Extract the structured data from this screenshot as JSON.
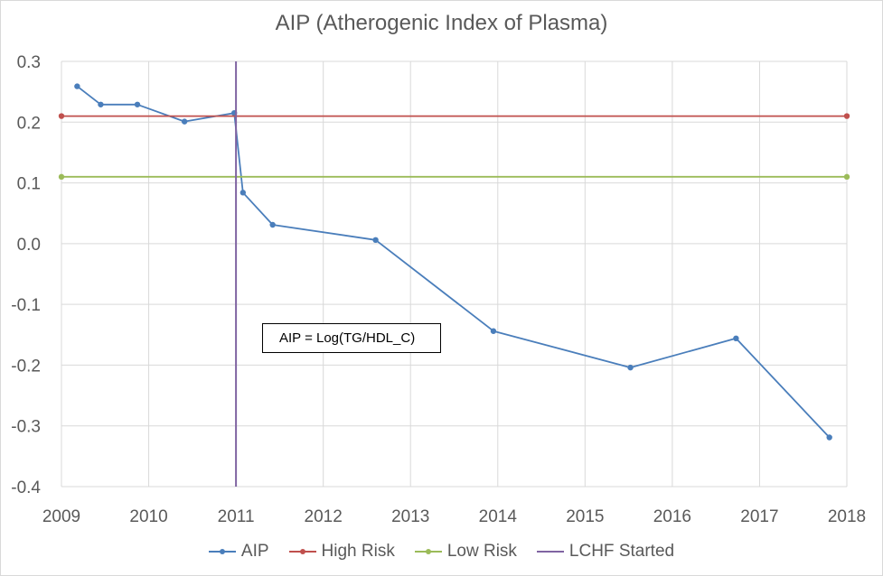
{
  "chart_data": {
    "type": "line",
    "title": "AIP (Atherogenic Index of Plasma)",
    "xlabel": "",
    "ylabel": "",
    "xlim": [
      2009,
      2018
    ],
    "ylim": [
      -0.4,
      0.3
    ],
    "x_ticks": [
      "2009",
      "2010",
      "2011",
      "2012",
      "2013",
      "2014",
      "2015",
      "2016",
      "2017",
      "2018"
    ],
    "y_ticks": [
      "0.3",
      "0.2",
      "0.1",
      "0.0",
      "-0.1",
      "-0.2",
      "-0.3",
      "-0.4"
    ],
    "grid": true,
    "series": [
      {
        "name": "AIP",
        "color": "#4a7ebb",
        "x": [
          2009.18,
          2009.45,
          2009.87,
          2010.41,
          2010.98,
          2011.08,
          2011.42,
          2012.6,
          2013.95,
          2015.52,
          2016.73,
          2017.8
        ],
        "y": [
          0.259,
          0.229,
          0.229,
          0.201,
          0.215,
          0.084,
          0.031,
          0.006,
          -0.144,
          -0.204,
          -0.156,
          -0.319
        ]
      },
      {
        "name": "High Risk",
        "color": "#c0504d",
        "x": [
          2009,
          2018
        ],
        "y": [
          0.21,
          0.21
        ]
      },
      {
        "name": "Low Risk",
        "color": "#9bbb59",
        "x": [
          2009,
          2018
        ],
        "y": [
          0.11,
          0.11
        ]
      },
      {
        "name": "LCHF Started",
        "color": "#8064a2",
        "x": [
          2011,
          2011
        ],
        "y": [
          0.3,
          -0.4
        ]
      }
    ],
    "annotation": "AIP = Log(TG/HDL_C)",
    "legend": [
      "AIP",
      "High Risk",
      "Low Risk",
      "LCHF Started"
    ],
    "legend_position": "bottom"
  }
}
